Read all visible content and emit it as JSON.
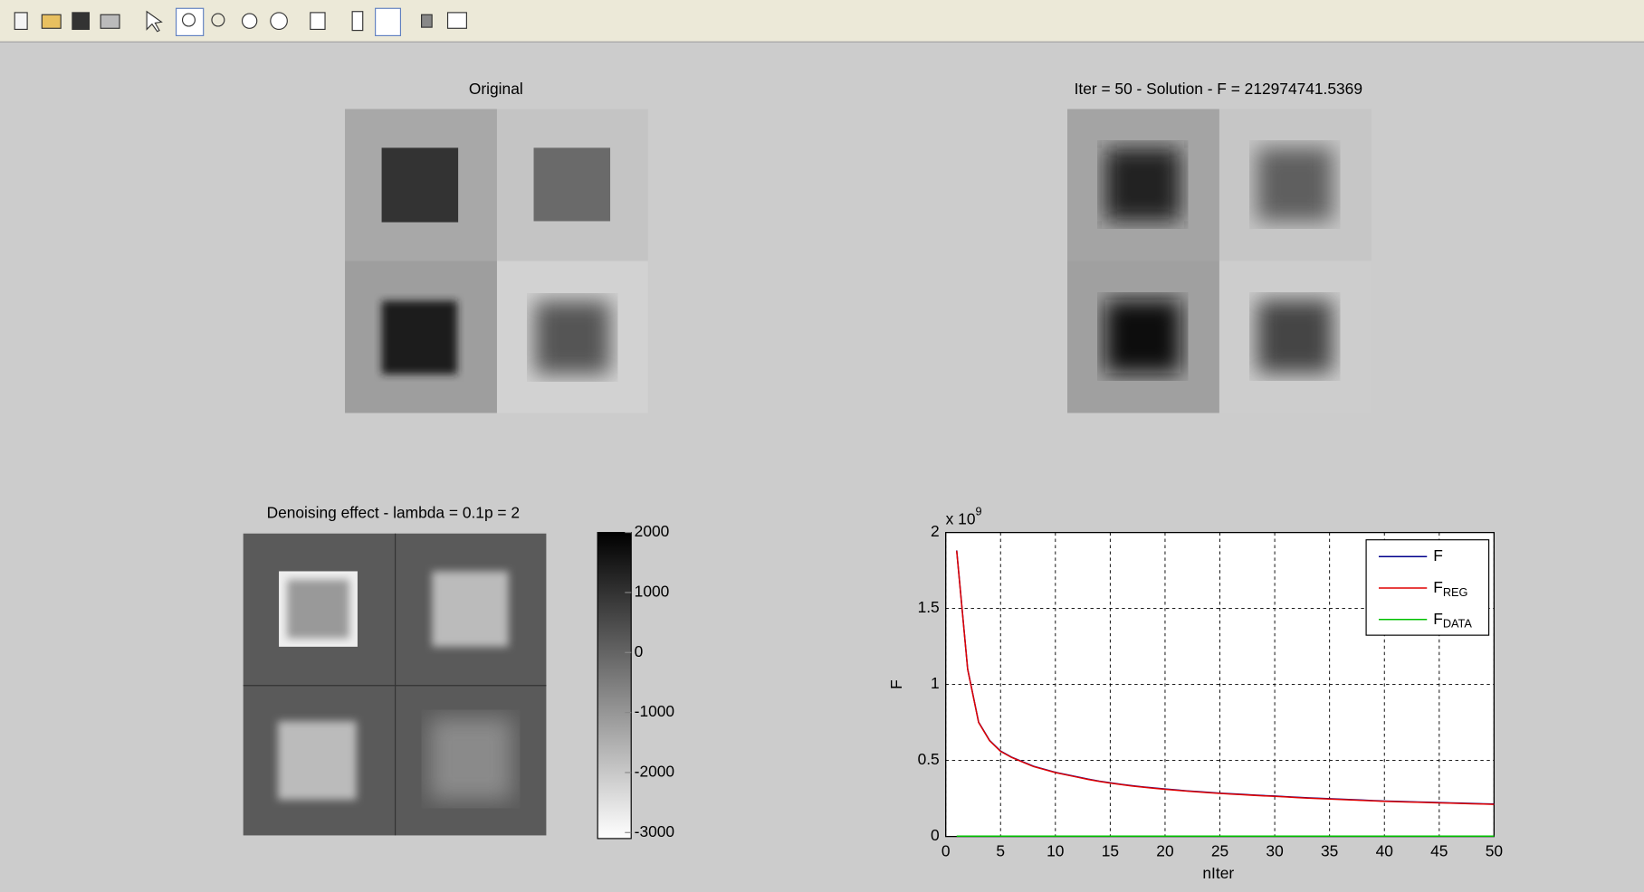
{
  "panels": [
    {
      "title": "Original"
    },
    {
      "title": "Iter = 50 - Solution - F = 212974741.5369"
    },
    {
      "title": "Denoising effect - lambda = 0.1p = 2"
    }
  ],
  "colorbar": {
    "ylim": [
      -3100,
      2000
    ],
    "yticks": [
      2000,
      1000,
      0,
      -1000,
      -2000,
      -3000
    ]
  },
  "chart_data": {
    "type": "line",
    "xlabel": "nIter",
    "ylabel": "F",
    "y_multiplier": {
      "base": "x 10",
      "exponent": "9"
    },
    "xlim": [
      0,
      50
    ],
    "xticks": [
      0,
      5,
      10,
      15,
      20,
      25,
      30,
      35,
      40,
      45,
      50
    ],
    "ylim": [
      0,
      2
    ],
    "yticks": [
      0,
      0.5,
      1,
      1.5,
      2
    ],
    "grid": true,
    "legend": "upper right",
    "x": [
      1,
      2,
      3,
      4,
      5,
      6,
      7,
      8,
      9,
      10,
      11,
      12,
      13,
      14,
      15,
      16,
      17,
      18,
      19,
      20,
      21,
      22,
      23,
      24,
      25,
      26,
      27,
      28,
      29,
      30,
      31,
      32,
      33,
      34,
      35,
      36,
      37,
      38,
      39,
      40,
      41,
      42,
      43,
      44,
      45,
      46,
      47,
      48,
      49,
      50
    ],
    "series": [
      {
        "name": "F",
        "color": "#00008b",
        "values": [
          1.882,
          1.102,
          0.752,
          0.632,
          0.562,
          0.522,
          0.492,
          0.462,
          0.442,
          0.422,
          0.407,
          0.392,
          0.377,
          0.364,
          0.353,
          0.343,
          0.334,
          0.326,
          0.319,
          0.312,
          0.306,
          0.3,
          0.295,
          0.29,
          0.285,
          0.281,
          0.277,
          0.273,
          0.269,
          0.266,
          0.262,
          0.258,
          0.254,
          0.251,
          0.248,
          0.245,
          0.242,
          0.239,
          0.236,
          0.233,
          0.231,
          0.229,
          0.227,
          0.225,
          0.223,
          0.221,
          0.219,
          0.217,
          0.215,
          0.213
        ]
      },
      {
        "name": "F",
        "subscript": "REG",
        "color": "#e00000",
        "values": [
          1.88,
          1.1,
          0.75,
          0.63,
          0.56,
          0.52,
          0.49,
          0.46,
          0.44,
          0.42,
          0.405,
          0.39,
          0.375,
          0.362,
          0.351,
          0.341,
          0.332,
          0.324,
          0.317,
          0.31,
          0.304,
          0.298,
          0.293,
          0.288,
          0.283,
          0.279,
          0.275,
          0.271,
          0.267,
          0.264,
          0.26,
          0.256,
          0.252,
          0.249,
          0.246,
          0.243,
          0.24,
          0.237,
          0.234,
          0.231,
          0.229,
          0.227,
          0.225,
          0.223,
          0.221,
          0.219,
          0.217,
          0.215,
          0.213,
          0.211
        ]
      },
      {
        "name": "F",
        "subscript": "DATA",
        "color": "#00c000",
        "values": [
          0.002,
          0.002,
          0.002,
          0.002,
          0.002,
          0.002,
          0.002,
          0.002,
          0.002,
          0.002,
          0.002,
          0.002,
          0.002,
          0.002,
          0.002,
          0.002,
          0.002,
          0.002,
          0.002,
          0.002,
          0.002,
          0.002,
          0.002,
          0.002,
          0.002,
          0.002,
          0.002,
          0.002,
          0.002,
          0.002,
          0.002,
          0.002,
          0.002,
          0.002,
          0.002,
          0.002,
          0.002,
          0.002,
          0.002,
          0.002,
          0.002,
          0.002,
          0.002,
          0.002,
          0.002,
          0.002,
          0.002,
          0.002,
          0.002,
          0.002
        ]
      }
    ]
  }
}
